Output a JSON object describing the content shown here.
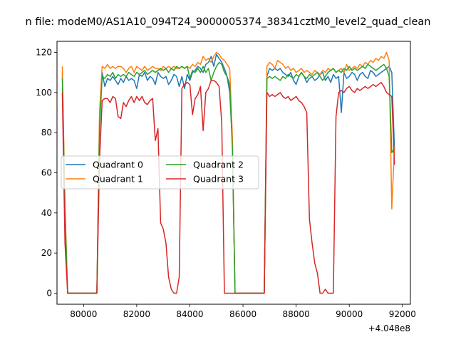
{
  "chart_data": {
    "type": "line",
    "title": "n file: modeM0/AS1A10_094T24_9000005374_38341cztM0_level2_quad_clean",
    "xlabel": "",
    "ylabel": "",
    "x_offset_label": "+4.048e8",
    "xlim": [
      79000,
      92300
    ],
    "ylim": [
      -5.5,
      125.5
    ],
    "x_ticks": [
      80000,
      82000,
      84000,
      86000,
      88000,
      90000,
      92000
    ],
    "x_tick_labels": [
      "80000",
      "82000",
      "84000",
      "86000",
      "88000",
      "90000",
      "92000"
    ],
    "y_ticks": [
      0,
      20,
      40,
      60,
      80,
      100,
      120
    ],
    "y_tick_labels": [
      "0",
      "20",
      "40",
      "60",
      "80",
      "100",
      "120"
    ],
    "grid": false,
    "legend": {
      "placement": "center-left",
      "columns": 2
    },
    "series": [
      {
        "name": "Quadrant 0",
        "color": "#1f77b4",
        "x": [
          79200,
          79300,
          79400,
          79500,
          80000,
          80500,
          80600,
          80700,
          80800,
          80900,
          81000,
          81100,
          81200,
          81300,
          81400,
          81500,
          81600,
          81700,
          81800,
          81900,
          82000,
          82100,
          82200,
          82300,
          82400,
          82500,
          82600,
          82700,
          82800,
          82900,
          83000,
          83100,
          83200,
          83300,
          83400,
          83500,
          83600,
          83700,
          83800,
          83900,
          84000,
          84100,
          84200,
          84300,
          84400,
          84500,
          84600,
          84700,
          84800,
          84900,
          85000,
          85100,
          85200,
          85300,
          85400,
          85500,
          85600,
          85700,
          86800,
          86900,
          87000,
          87100,
          87200,
          87300,
          87400,
          87500,
          87600,
          87700,
          87800,
          87900,
          88000,
          88100,
          88200,
          88300,
          88400,
          88500,
          88600,
          88700,
          88800,
          88900,
          89000,
          89100,
          89200,
          89300,
          89400,
          89500,
          89600,
          89700,
          89800,
          89900,
          90000,
          90100,
          90200,
          90300,
          90400,
          90500,
          90600,
          90700,
          90800,
          90900,
          91000,
          91100,
          91200,
          91300,
          91400,
          91500,
          91600,
          91700
        ],
        "y": [
          110,
          42,
          0,
          0,
          0,
          0,
          85,
          110,
          103,
          107,
          106,
          108,
          106,
          104,
          107,
          105,
          108,
          106,
          107,
          106,
          102,
          109,
          108,
          110,
          106,
          108,
          107,
          104,
          110,
          108,
          107,
          108,
          104,
          106,
          109,
          108,
          103,
          108,
          102,
          109,
          106,
          110,
          111,
          113,
          112,
          110,
          114,
          115,
          118,
          113,
          119,
          117,
          115,
          112,
          108,
          100,
          75,
          0,
          0,
          108,
          112,
          111,
          112,
          111,
          112,
          110,
          109,
          108,
          110,
          106,
          104,
          108,
          110,
          108,
          105,
          107,
          108,
          106,
          107,
          109,
          110,
          106,
          108,
          105,
          109,
          107,
          108,
          90,
          110,
          107,
          108,
          110,
          109,
          106,
          109,
          110,
          108,
          107,
          111,
          110,
          108,
          109,
          110,
          111,
          112,
          113,
          110,
          72
        ]
      },
      {
        "name": "Quadrant 1",
        "color": "#ff7f0e",
        "x": [
          79200,
          79300,
          79400,
          79500,
          80000,
          80500,
          80600,
          80700,
          80800,
          80900,
          81000,
          81100,
          81200,
          81300,
          81400,
          81500,
          81600,
          81700,
          81800,
          81900,
          82000,
          82100,
          82200,
          82300,
          82400,
          82500,
          82600,
          82700,
          82800,
          82900,
          83000,
          83100,
          83200,
          83300,
          83400,
          83500,
          83600,
          83700,
          83800,
          83900,
          84000,
          84100,
          84200,
          84300,
          84400,
          84500,
          84600,
          84700,
          84800,
          84900,
          85000,
          85100,
          85200,
          85300,
          85400,
          85500,
          85600,
          85700,
          86800,
          86900,
          87000,
          87100,
          87200,
          87300,
          87400,
          87500,
          87600,
          87700,
          87800,
          87900,
          88000,
          88100,
          88200,
          88300,
          88400,
          88500,
          88600,
          88700,
          88800,
          88900,
          89000,
          89100,
          89200,
          89300,
          89400,
          89500,
          89600,
          89700,
          89800,
          89900,
          90000,
          90100,
          90200,
          90300,
          90400,
          90500,
          90600,
          90700,
          90800,
          90900,
          91000,
          91100,
          91200,
          91300,
          91400,
          91500,
          91600,
          91700
        ],
        "y": [
          113,
          45,
          0,
          0,
          0,
          0,
          90,
          113,
          112,
          114,
          112,
          113,
          112,
          113,
          113,
          112,
          110,
          112,
          113,
          110,
          113,
          112,
          111,
          113,
          111,
          112,
          113,
          112,
          112,
          111,
          113,
          112,
          113,
          112,
          113,
          112,
          112,
          113,
          112,
          113,
          112,
          114,
          113,
          115,
          114,
          118,
          116,
          117,
          115,
          118,
          120,
          119,
          117,
          116,
          114,
          112,
          78,
          0,
          0,
          113,
          115,
          114,
          112,
          116,
          115,
          114,
          112,
          113,
          111,
          112,
          110,
          111,
          112,
          110,
          111,
          110,
          109,
          111,
          110,
          109,
          111,
          110,
          112,
          111,
          112,
          110,
          111,
          112,
          110,
          114,
          111,
          112,
          113,
          112,
          114,
          113,
          115,
          114,
          116,
          115,
          117,
          116,
          118,
          117,
          120,
          116,
          42,
          73
        ]
      },
      {
        "name": "Quadrant 2",
        "color": "#2ca02c",
        "x": [
          79200,
          79300,
          79400,
          79500,
          80000,
          80500,
          80600,
          80700,
          80800,
          80900,
          81000,
          81100,
          81200,
          81300,
          81400,
          81500,
          81600,
          81700,
          81800,
          81900,
          82000,
          82100,
          82200,
          82300,
          82400,
          82500,
          82600,
          82700,
          82800,
          82900,
          83000,
          83100,
          83200,
          83300,
          83400,
          83500,
          83600,
          83700,
          83800,
          83900,
          84000,
          84100,
          84200,
          84300,
          84400,
          84500,
          84600,
          84700,
          84800,
          84900,
          85000,
          85100,
          85200,
          85300,
          85400,
          85500,
          85600,
          85700,
          86800,
          86900,
          87000,
          87100,
          87200,
          87300,
          87400,
          87500,
          87600,
          87700,
          87800,
          87900,
          88000,
          88100,
          88200,
          88300,
          88400,
          88500,
          88600,
          88700,
          88800,
          88900,
          89000,
          89100,
          89200,
          89300,
          89400,
          89500,
          89600,
          89700,
          89800,
          89900,
          90000,
          90100,
          90200,
          90300,
          90400,
          90500,
          90600,
          90700,
          90800,
          90900,
          91000,
          91100,
          91200,
          91300,
          91400,
          91500,
          91600,
          91700
        ],
        "y": [
          107,
          40,
          0,
          0,
          0,
          0,
          82,
          108,
          107,
          109,
          108,
          110,
          107,
          109,
          108,
          109,
          108,
          110,
          109,
          108,
          110,
          109,
          110,
          111,
          109,
          110,
          111,
          110,
          111,
          112,
          111,
          112,
          110,
          112,
          111,
          113,
          112,
          113,
          112,
          113,
          107,
          111,
          110,
          112,
          110,
          113,
          110,
          112,
          106,
          110,
          113,
          115,
          114,
          110,
          108,
          104,
          72,
          0,
          0,
          107,
          108,
          107,
          108,
          107,
          106,
          108,
          107,
          109,
          108,
          107,
          109,
          108,
          110,
          108,
          107,
          109,
          108,
          109,
          110,
          108,
          106,
          108,
          110,
          111,
          112,
          110,
          111,
          110,
          112,
          111,
          113,
          111,
          112,
          111,
          112,
          113,
          112,
          114,
          113,
          112,
          111,
          112,
          113,
          114,
          112,
          108,
          70,
          72
        ]
      },
      {
        "name": "Quadrant 3",
        "color": "#d62728",
        "x": [
          79200,
          79300,
          79400,
          79500,
          80000,
          80500,
          80600,
          80700,
          80800,
          80900,
          81000,
          81100,
          81200,
          81300,
          81400,
          81500,
          81600,
          81700,
          81800,
          81900,
          82000,
          82100,
          82200,
          82300,
          82400,
          82500,
          82600,
          82700,
          82800,
          82900,
          83000,
          83100,
          83200,
          83300,
          83400,
          83500,
          83600,
          83700,
          83800,
          83900,
          84000,
          84100,
          84200,
          84300,
          84400,
          84500,
          84600,
          84700,
          84800,
          84900,
          85000,
          85100,
          85200,
          85300,
          85400,
          85500,
          85600,
          85700,
          86800,
          86900,
          87000,
          87100,
          87200,
          87300,
          87400,
          87500,
          87600,
          87700,
          87800,
          87900,
          88000,
          88100,
          88200,
          88300,
          88400,
          88500,
          88600,
          88700,
          88800,
          88900,
          89000,
          89100,
          89200,
          89300,
          89400,
          89500,
          89600,
          89700,
          89800,
          89900,
          90000,
          90100,
          90200,
          90300,
          90400,
          90500,
          90600,
          90700,
          90800,
          90900,
          91000,
          91100,
          91200,
          91300,
          91400,
          91500,
          91600,
          91700
        ],
        "y": [
          100,
          25,
          0,
          0,
          0,
          0,
          66,
          96,
          97,
          97,
          95,
          98,
          97,
          88,
          87,
          95,
          93,
          96,
          98,
          95,
          98,
          96,
          98,
          95,
          94,
          96,
          97,
          76,
          82,
          35,
          32,
          25,
          8,
          2,
          0,
          0,
          8,
          102,
          104,
          105,
          104,
          89,
          97,
          99,
          103,
          81,
          100,
          102,
          106,
          106,
          105,
          103,
          85,
          0,
          0,
          0,
          0,
          0,
          0,
          100,
          98,
          99,
          98,
          99,
          100,
          98,
          97,
          98,
          96,
          97,
          98,
          96,
          95,
          93,
          90,
          37,
          25,
          15,
          10,
          0,
          0,
          2,
          0,
          0,
          0,
          88,
          100,
          101,
          100,
          102,
          103,
          101,
          100,
          102,
          101,
          102,
          103,
          102,
          103,
          104,
          103,
          104,
          105,
          103,
          100,
          99,
          98,
          64
        ]
      }
    ]
  }
}
